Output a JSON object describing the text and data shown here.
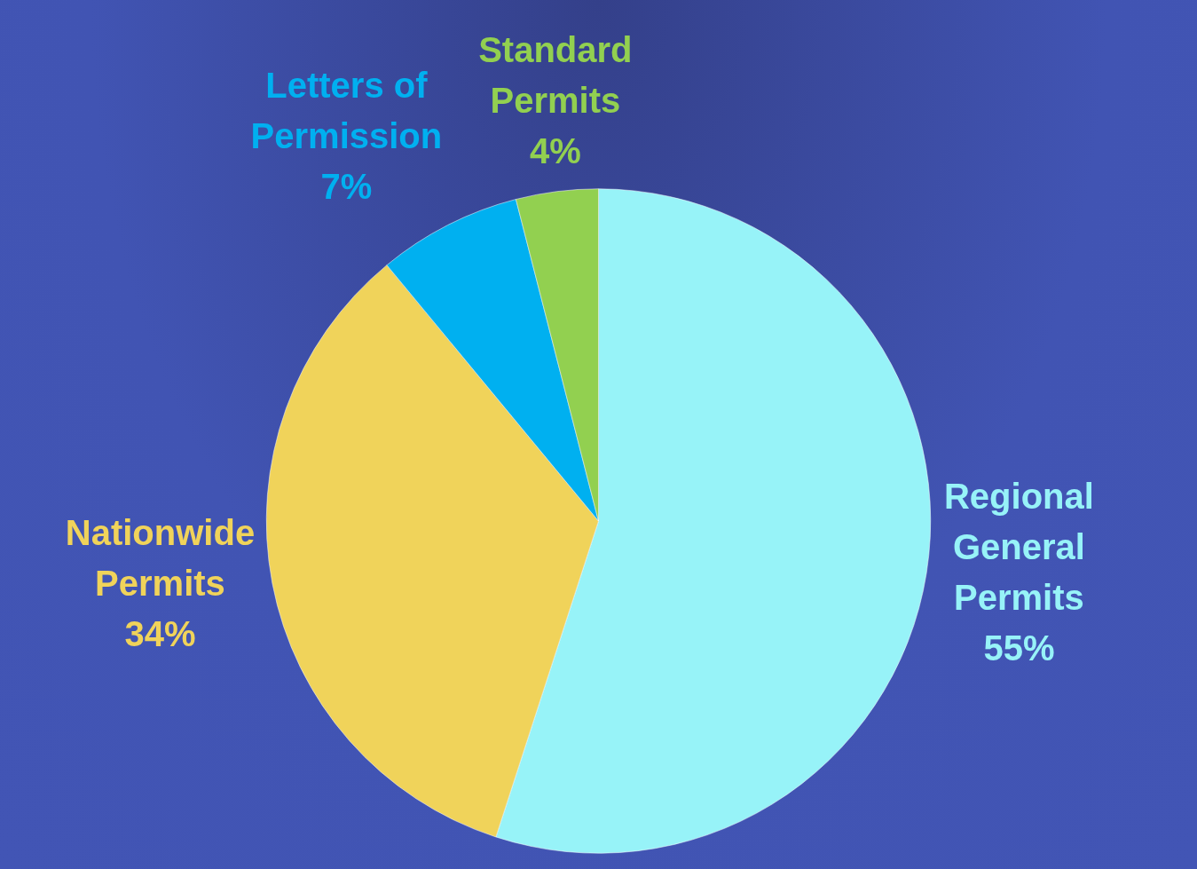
{
  "chart_data": {
    "type": "pie",
    "categories": [
      "Regional General Permits",
      "Nationwide Permits",
      "Letters of Permission",
      "Standard Permits"
    ],
    "values": [
      55,
      34,
      7,
      4
    ],
    "value_labels": [
      "55%",
      "34%",
      "7%",
      "4%"
    ],
    "colors": [
      "#97f3f8",
      "#f0d35a",
      "#00b0f0",
      "#92d050"
    ],
    "legend": false
  }
}
